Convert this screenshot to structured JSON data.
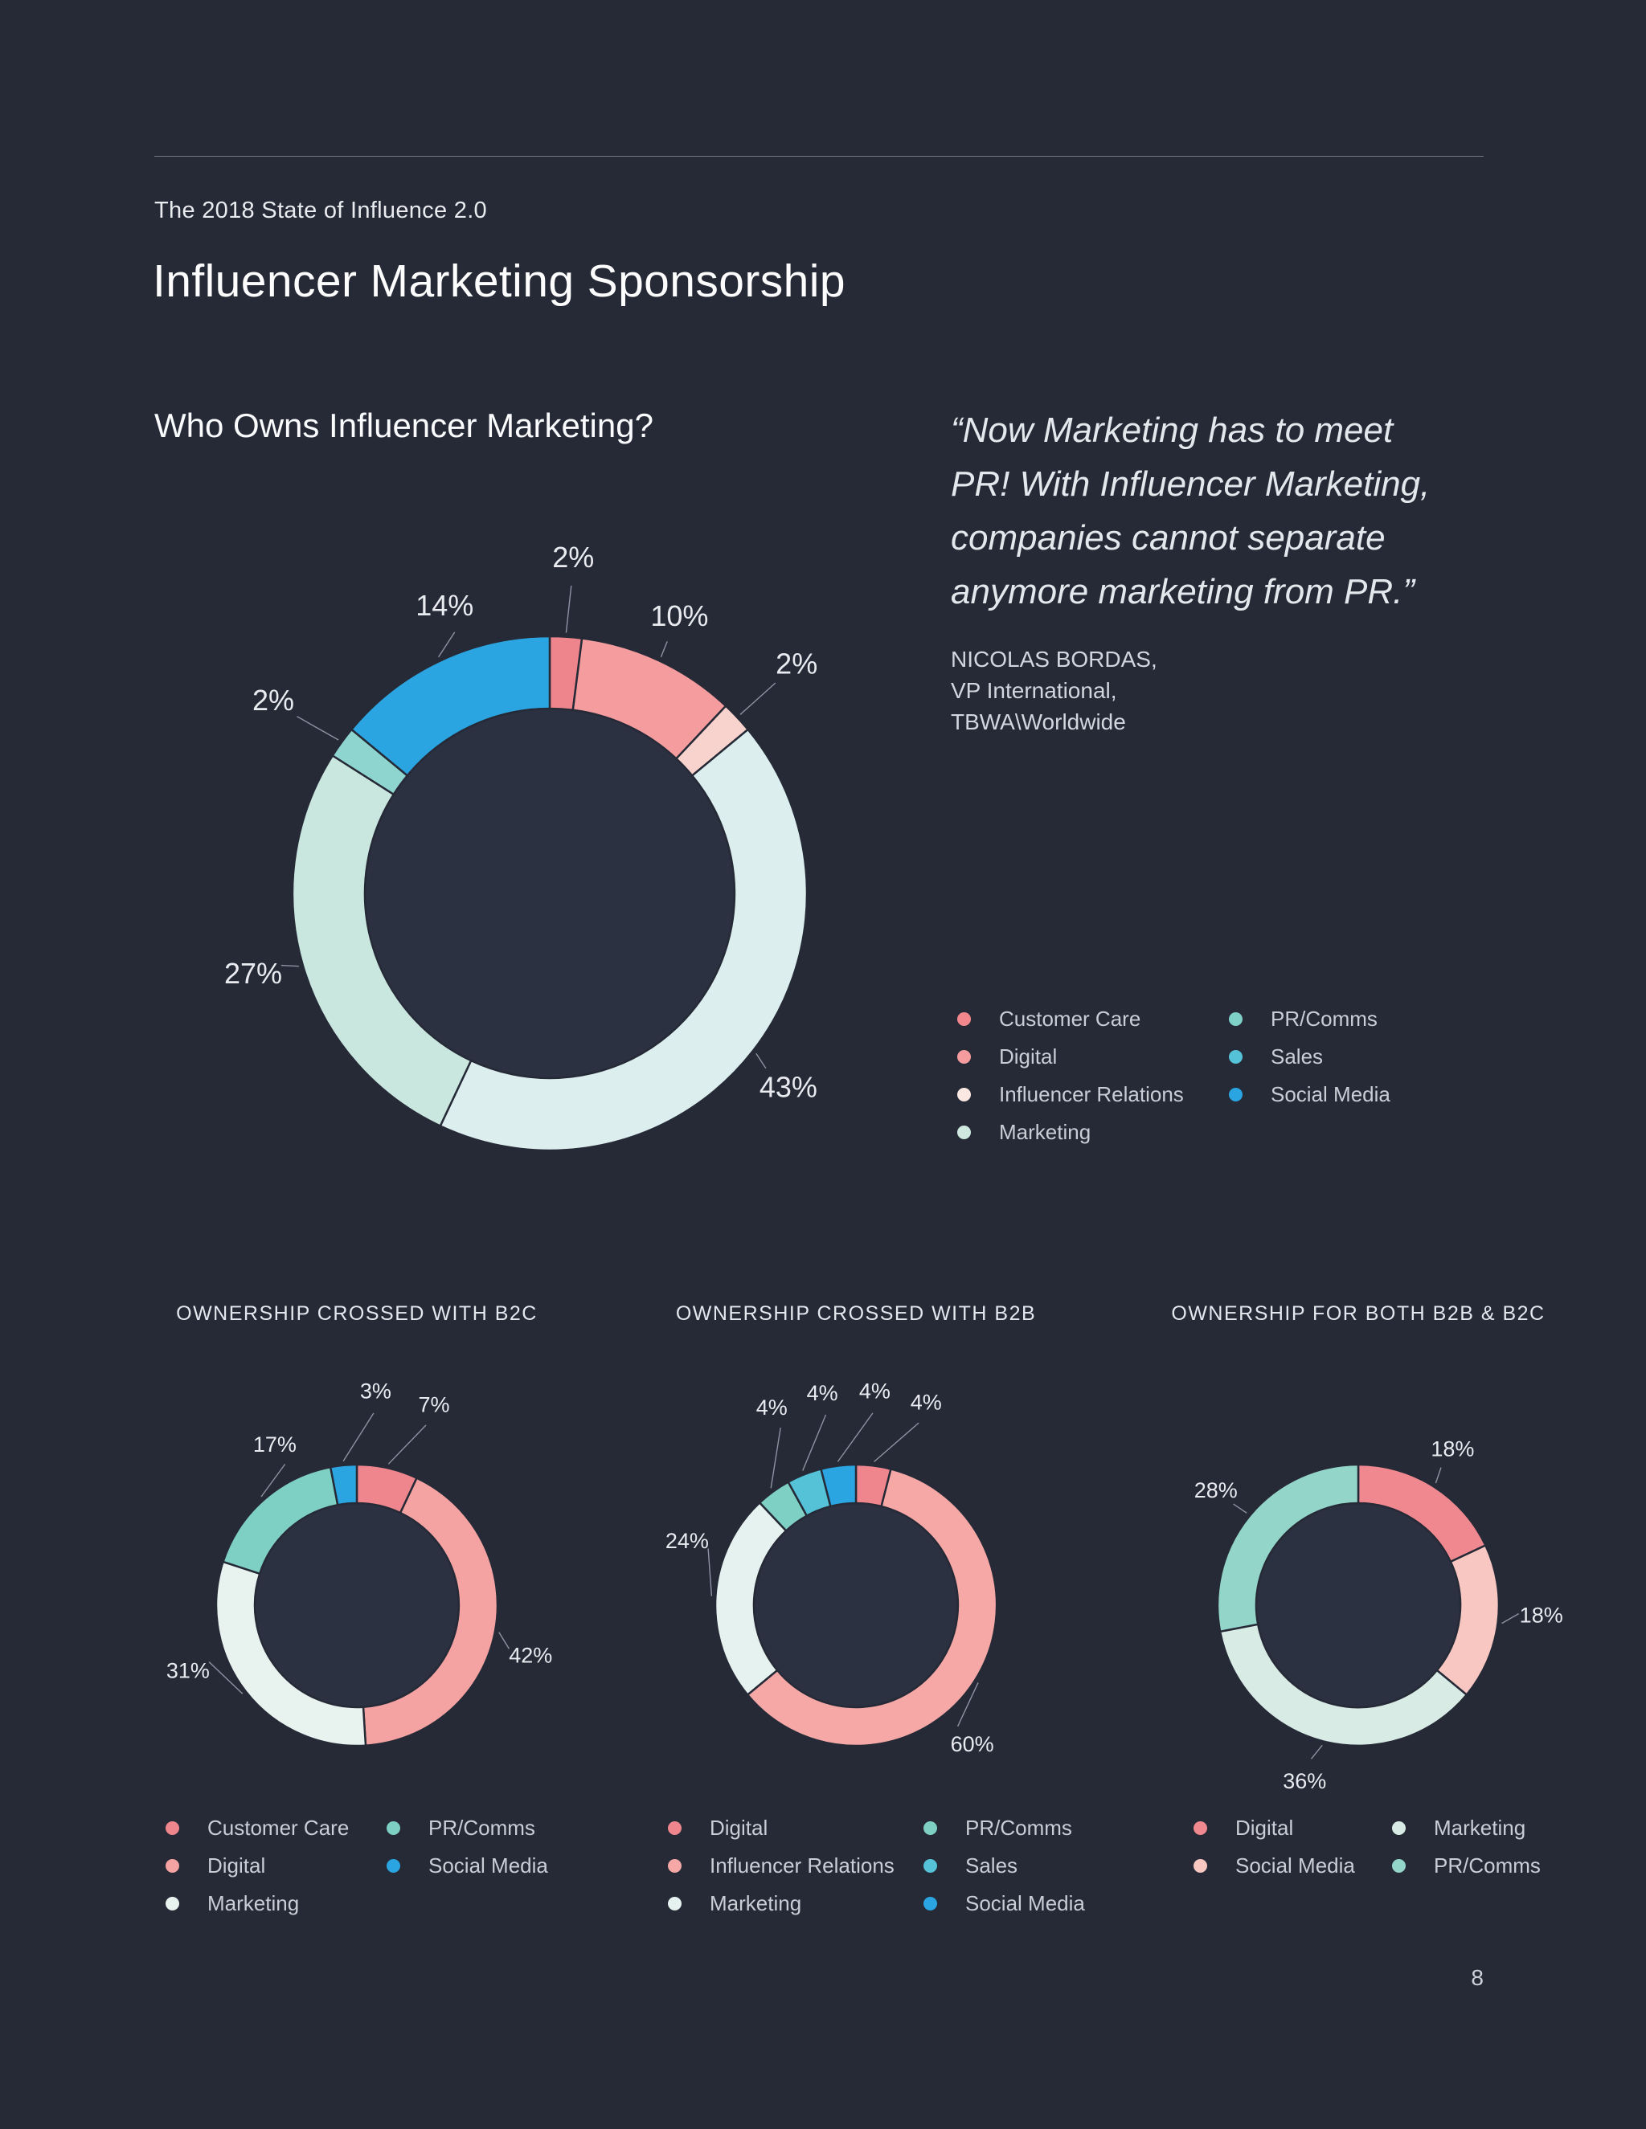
{
  "page": {
    "eyebrow": "The 2018 State of Influence 2.0",
    "title": "Influencer Marketing Sponsorship",
    "page_number": "8"
  },
  "quote": {
    "lines": [
      "“Now Marketing has to meet",
      "PR! With Influencer Marketing,",
      "companies cannot separate",
      "anymore marketing from PR.”"
    ],
    "attribution": [
      "NICOLAS BORDAS,",
      "VP International,",
      "TBWA\\Worldwide"
    ]
  },
  "colors": {
    "background": "#262a37",
    "hole": "#2b3141",
    "leader": "#8d93a4",
    "label_text": "#e9ebf0"
  },
  "chart_data": [
    {
      "id": "main",
      "type": "donut",
      "title": "Who Owns Influencer Marketing?",
      "unit": "%",
      "slices": [
        {
          "label": "Customer Care",
          "value": 2,
          "color": "#ef858c",
          "label_angle": 4
        },
        {
          "label": "Digital",
          "value": 10,
          "color": "#f59c9e",
          "label_angle": 25
        },
        {
          "label": "Influencer Relations",
          "value": 2,
          "color": "#f8d3cd",
          "label_angle": 47
        },
        {
          "label": "Marketing",
          "value": 43,
          "color": "#dcefee",
          "label_angle": 129
        },
        {
          "label": "PR/Comms",
          "value": 27,
          "color": "#c9e7df",
          "label_angle": 255
        },
        {
          "label": "Sales",
          "value": 2,
          "color": "#8ed4cf",
          "label_angle": 305
        },
        {
          "label": "Social Media",
          "value": 14,
          "color": "#2aa5e1",
          "label_angle": 340
        }
      ],
      "legend_columns": [
        [
          {
            "label": "Customer Care",
            "color": "#f2888e"
          },
          {
            "label": "Digital",
            "color": "#f59c9e"
          },
          {
            "label": "Influencer Relations",
            "color": "#fce8e2"
          },
          {
            "label": "Marketing",
            "color": "#cfe9e1"
          }
        ],
        [
          {
            "label": "PR/Comms",
            "color": "#7fd0c6"
          },
          {
            "label": "Sales",
            "color": "#56c2d7"
          },
          {
            "label": "Social Media",
            "color": "#2aa5e1"
          }
        ]
      ]
    },
    {
      "id": "b2c",
      "type": "donut",
      "title": "OWNERSHIP CROSSED WITH B2C",
      "unit": "%",
      "slices": [
        {
          "label": "Customer Care",
          "value": 7,
          "color": "#f0868d",
          "label_angle": 21
        },
        {
          "label": "Digital",
          "value": 42,
          "color": "#f5a3a2",
          "label_angle": 106
        },
        {
          "label": "Marketing",
          "value": 31,
          "color": "#e8f3f0",
          "label_angle": 249
        },
        {
          "label": "PR/Comms",
          "value": 17,
          "color": "#7ed0c4",
          "label_angle": 333
        },
        {
          "label": "Social Media",
          "value": 3,
          "color": "#2aa5e1",
          "label_angle": 5
        }
      ],
      "legend_columns": [
        [
          {
            "label": "Customer Care",
            "color": "#f0868d"
          },
          {
            "label": "Digital",
            "color": "#f5a3a2"
          },
          {
            "label": "Marketing",
            "color": "#e8f3f0"
          }
        ],
        [
          {
            "label": "PR/Comms",
            "color": "#7ed0c4"
          },
          {
            "label": "Social Media",
            "color": "#2aa5e1"
          }
        ]
      ]
    },
    {
      "id": "b2b",
      "type": "donut",
      "title": "OWNERSHIP CROSSED WITH B2B",
      "unit": "%",
      "slices": [
        {
          "label": "Digital",
          "value": 4,
          "color": "#f0868d",
          "label_angle": 19
        },
        {
          "label": "Influencer Relations",
          "value": 60,
          "color": "#f5a8a6",
          "label_angle": 140
        },
        {
          "label": "Marketing",
          "value": 24,
          "color": "#e6f2ef",
          "label_angle": 291
        },
        {
          "label": "PR/Comms",
          "value": 4,
          "color": "#7ed0c4",
          "label_angle": 337
        },
        {
          "label": "Sales",
          "value": 4,
          "color": "#55c2d8",
          "label_angle": 351
        },
        {
          "label": "Social Media",
          "value": 4,
          "color": "#2aa5e1",
          "label_angle": 5
        }
      ],
      "legend_columns": [
        [
          {
            "label": "Digital",
            "color": "#f0868d"
          },
          {
            "label": "Influencer Relations",
            "color": "#f5a8a6"
          },
          {
            "label": "Marketing",
            "color": "#e6f2ef"
          }
        ],
        [
          {
            "label": "PR/Comms",
            "color": "#7ed0c4"
          },
          {
            "label": "Sales",
            "color": "#55c2d8"
          },
          {
            "label": "Social Media",
            "color": "#2aa5e1"
          }
        ]
      ]
    },
    {
      "id": "both",
      "type": "donut",
      "title": "OWNERSHIP FOR BOTH B2B & B2C",
      "unit": "%",
      "slices": [
        {
          "label": "Digital",
          "value": 18,
          "color": "#f0898f",
          "label_angle": 31
        },
        {
          "label": "Social Media",
          "value": 18,
          "color": "#f8c7c2",
          "label_angle": 93
        },
        {
          "label": "Marketing",
          "value": 36,
          "color": "#d8ece5",
          "label_angle": 197
        },
        {
          "label": "PR/Comms",
          "value": 28,
          "color": "#93d6c9",
          "label_angle": 309
        }
      ],
      "legend_columns": [
        [
          {
            "label": "Digital",
            "color": "#f0898f"
          },
          {
            "label": "Social Media",
            "color": "#f8c7c2"
          }
        ],
        [
          {
            "label": "Marketing",
            "color": "#d8ece5"
          },
          {
            "label": "PR/Comms",
            "color": "#93d6c9"
          }
        ]
      ]
    }
  ]
}
